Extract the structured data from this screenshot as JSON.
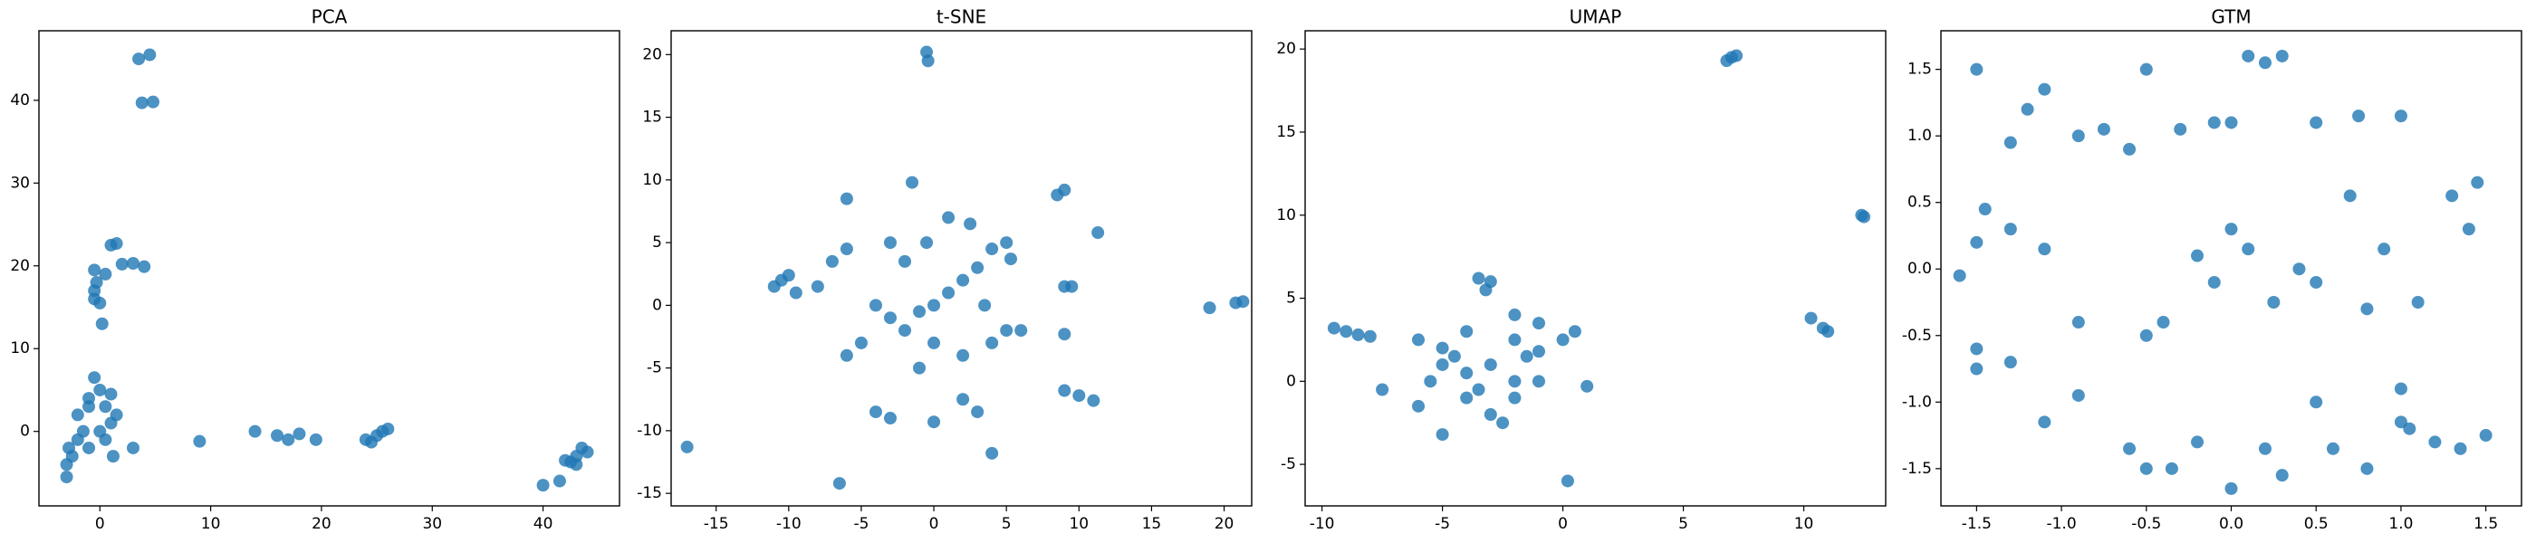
{
  "chart_data": [
    {
      "type": "scatter",
      "title": "PCA",
      "color": "#1f77b4",
      "x": [
        3.5,
        4.5,
        3.8,
        4.8,
        1,
        1.5,
        2,
        3,
        4,
        -0.5,
        0.5,
        -0.3,
        -0.5,
        0,
        0.2,
        -0.5,
        -1,
        0,
        1,
        -0.5,
        -2,
        -1.5,
        0,
        1,
        -2.5,
        -3,
        -1,
        0.5,
        1.5,
        -2,
        -1,
        0.5,
        -3,
        -2.8,
        1.2,
        3,
        9,
        14,
        16,
        17,
        18,
        19.5,
        24,
        25,
        25.5,
        26,
        24.5,
        40,
        41.5,
        42,
        43,
        43.5,
        44,
        43,
        42.5
      ],
      "values": [
        45,
        45.5,
        39.7,
        39.8,
        22.5,
        22.7,
        20.2,
        20.3,
        19.9,
        19.5,
        19,
        18,
        16,
        15.5,
        13,
        17,
        4,
        5,
        4.5,
        6.5,
        2,
        0,
        0,
        1,
        -3,
        -5.5,
        -2,
        -1,
        2,
        -1,
        3,
        3,
        -4,
        -2,
        -3,
        -2,
        -1.2,
        0,
        -0.5,
        -1,
        -0.3,
        -1,
        -1,
        -0.5,
        0,
        0.3,
        -1.3,
        -6.5,
        -6,
        -3.5,
        -3,
        -2,
        -2.5,
        -4,
        -3.7
      ],
      "xlim": [
        -5.5,
        46.9
      ],
      "ylim": [
        -9,
        48.4
      ],
      "xticks": [
        0,
        10,
        20,
        30,
        40
      ],
      "yticks": [
        0,
        10,
        20,
        30,
        40
      ]
    },
    {
      "type": "scatter",
      "title": "t-SNE",
      "color": "#1f77b4",
      "x": [
        -0.5,
        -0.4,
        -17,
        -6.5,
        19,
        20.8,
        21.3,
        11.3,
        8.5,
        9,
        9,
        9.5,
        9,
        9,
        10,
        11,
        -10.5,
        -11,
        -10,
        -9.5,
        -8,
        -7,
        -6,
        -6,
        -1.5,
        -4,
        -3,
        -2,
        -1,
        0,
        1,
        2,
        3,
        4,
        5,
        5.3,
        0,
        -1,
        2,
        -5,
        -6,
        -4,
        -3,
        0,
        4,
        3,
        2,
        -0.5,
        1,
        2.5,
        3.5,
        -2,
        -3,
        4,
        5,
        6
      ],
      "values": [
        20.2,
        19.5,
        -11.3,
        -14.2,
        -0.2,
        0.2,
        0.3,
        5.8,
        8.8,
        9.2,
        1.5,
        1.5,
        -2.3,
        -6.8,
        -7.2,
        -7.6,
        2,
        1.5,
        2.4,
        1,
        1.5,
        3.5,
        4.5,
        8.5,
        9.8,
        0,
        -1,
        -2,
        -0.5,
        0,
        1,
        2,
        3,
        4.5,
        5,
        3.7,
        -3,
        -5,
        -4,
        -3,
        -4,
        -8.5,
        -9,
        -9.3,
        -11.8,
        -8.5,
        -7.5,
        5,
        7,
        6.5,
        0,
        3.5,
        5,
        -3,
        -2,
        -2
      ],
      "xlim": [
        -18.1,
        21.9
      ],
      "ylim": [
        -16,
        21.9
      ],
      "xticks": [
        -15,
        -10,
        -5,
        0,
        5,
        10,
        15,
        20
      ],
      "yticks": [
        -15,
        -10,
        -5,
        0,
        5,
        10,
        15,
        20
      ]
    },
    {
      "type": "scatter",
      "title": "UMAP",
      "color": "#1f77b4",
      "x": [
        7,
        7.2,
        6.8,
        12.5,
        12.4,
        10.3,
        10.8,
        11,
        0.2,
        -9.5,
        -9,
        -8.5,
        -8,
        -3.5,
        -3,
        -3.2,
        -2,
        -4,
        -5,
        -6,
        -5.5,
        -6,
        -7.5,
        -5,
        -4,
        -3,
        -2.5,
        -2,
        -1,
        0,
        0.5,
        1,
        -1,
        -1.5,
        -3,
        -4,
        -2,
        -3.5,
        -4.5,
        -1,
        -2,
        -5
      ],
      "values": [
        19.5,
        19.6,
        19.3,
        9.9,
        10,
        3.8,
        3.2,
        3,
        -6,
        3.2,
        3,
        2.8,
        2.7,
        6.2,
        6,
        5.5,
        4,
        3,
        2,
        2.5,
        0,
        -1.5,
        -0.5,
        -3.2,
        -1,
        -2,
        -2.5,
        -1,
        0,
        2.5,
        3,
        -0.3,
        3.5,
        1.5,
        1,
        0.5,
        0,
        -0.5,
        1.5,
        1.8,
        2.5,
        1
      ],
      "xlim": [
        -10.7,
        13.4
      ],
      "ylim": [
        -7.5,
        21.1
      ],
      "xticks": [
        -10,
        -5,
        0,
        5,
        10
      ],
      "yticks": [
        -5,
        0,
        5,
        10,
        15,
        20
      ]
    },
    {
      "type": "scatter",
      "title": "GTM",
      "color": "#1f77b4",
      "x": [
        -1.5,
        -1.2,
        -1.1,
        -1.3,
        -0.9,
        -0.75,
        -0.6,
        -0.5,
        -0.3,
        -0.1,
        0,
        0.1,
        0.2,
        0.3,
        0.5,
        0.75,
        1,
        -1.6,
        -1.5,
        -1.45,
        -1.3,
        -1.1,
        -0.9,
        -0.5,
        -0.4,
        -0.2,
        -0.1,
        0,
        0.1,
        0.25,
        0.4,
        0.5,
        0.7,
        0.9,
        1.1,
        1.3,
        1.4,
        1.45,
        -1.5,
        -1.5,
        -1.3,
        -1.1,
        -0.9,
        -0.6,
        -0.5,
        -0.35,
        -0.2,
        0,
        0.2,
        0.3,
        0.5,
        0.6,
        0.8,
        1,
        1,
        1.2,
        1.35,
        1.5,
        1.05,
        0.8
      ],
      "values": [
        1.5,
        1.2,
        1.35,
        0.95,
        1,
        1.05,
        0.9,
        1.5,
        1.05,
        1.1,
        1.1,
        1.6,
        1.55,
        1.6,
        1.1,
        1.15,
        1.15,
        -0.05,
        0.2,
        0.45,
        0.3,
        0.15,
        -0.4,
        -0.5,
        -0.4,
        0.1,
        -0.1,
        0.3,
        0.15,
        -0.25,
        0,
        -0.1,
        0.55,
        0.15,
        -0.25,
        0.55,
        0.3,
        0.65,
        -0.6,
        -0.75,
        -0.7,
        -1.15,
        -0.95,
        -1.35,
        -1.5,
        -1.5,
        -1.3,
        -1.65,
        -1.35,
        -1.55,
        -1,
        -1.35,
        -1.5,
        -0.9,
        -1.15,
        -1.3,
        -1.35,
        -1.25,
        -1.2,
        -0.3
      ],
      "xlim": [
        -1.71,
        1.71
      ],
      "ylim": [
        -1.78,
        1.79
      ],
      "xticks": [
        -1.5,
        {
          "value": -1,
          "label": "-1.0"
        },
        -0.5,
        {
          "value": 0,
          "label": "0.0"
        },
        0.5,
        {
          "value": 1,
          "label": "1.0"
        },
        1.5
      ],
      "yticks": [
        -1.5,
        {
          "value": -1,
          "label": "-1.0"
        },
        -0.5,
        {
          "value": 0,
          "label": "0.0"
        },
        0.5,
        {
          "value": 1,
          "label": "1.0"
        },
        1.5
      ]
    }
  ]
}
